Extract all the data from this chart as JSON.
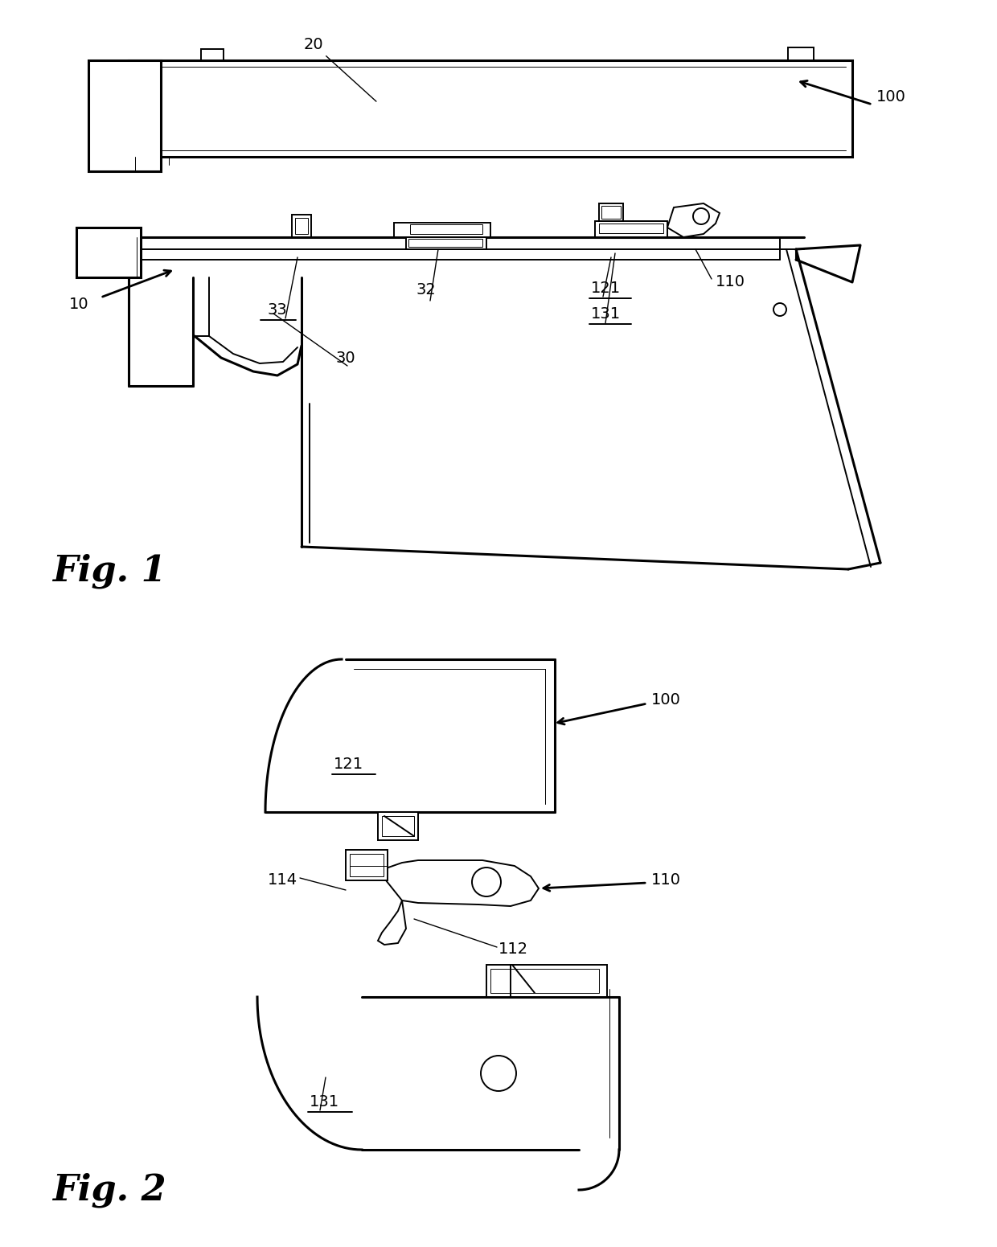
{
  "fig_width": 12.4,
  "fig_height": 15.51,
  "dpi": 100,
  "bg_color": "#ffffff",
  "line_color": "#000000",
  "lw_thick": 2.2,
  "lw_med": 1.4,
  "lw_thin": 0.7,
  "fig1_label": "Fig. 1",
  "fig2_label": "Fig. 2",
  "font_size_fig": 32,
  "font_size_label": 14
}
